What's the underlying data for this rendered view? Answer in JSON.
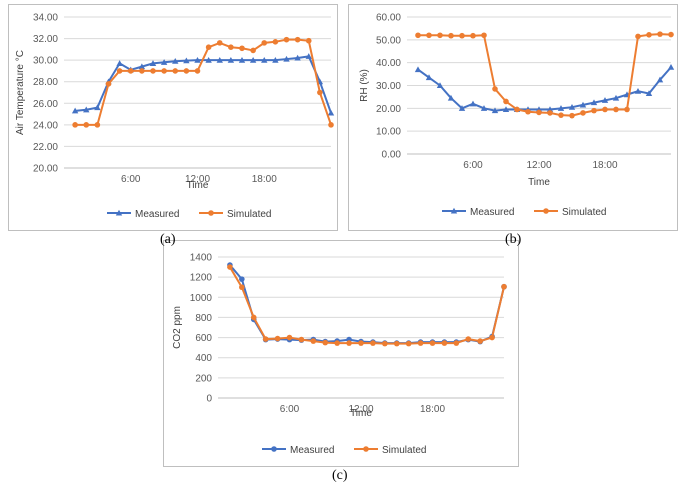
{
  "captions": {
    "a": "(a)",
    "b": "(b)",
    "c": "(c)"
  },
  "colors": {
    "measured": "#4472C4",
    "simulated": "#ED7D31",
    "grid": "#d9d9d9",
    "text": "#595959"
  },
  "chart_data": [
    {
      "id": "a",
      "type": "line",
      "title": "",
      "xlabel": "Time",
      "ylabel": "Air Temperature °C",
      "x": [
        1,
        2,
        3,
        4,
        5,
        6,
        7,
        8,
        9,
        10,
        11,
        12,
        13,
        14,
        15,
        16,
        17,
        18,
        19,
        20,
        21,
        22,
        23,
        24
      ],
      "xlim": [
        0,
        24
      ],
      "xticks": [
        {
          "x": 6,
          "label": "6:00"
        },
        {
          "x": 12,
          "label": "12:00"
        },
        {
          "x": 18,
          "label": "18:00"
        }
      ],
      "ylim": [
        20,
        34
      ],
      "yticks": [
        "20.00",
        "22.00",
        "24.00",
        "26.00",
        "28.00",
        "30.00",
        "32.00",
        "34.00"
      ],
      "grid": "horizontal",
      "legend": "bottom-center",
      "series": [
        {
          "name": "Measured",
          "marker": "triangle",
          "values": [
            25.3,
            25.4,
            25.6,
            28.0,
            29.7,
            29.1,
            29.4,
            29.7,
            29.8,
            29.9,
            29.95,
            30.0,
            30.0,
            30.0,
            30.0,
            30.0,
            30.0,
            30.0,
            30.0,
            30.1,
            30.2,
            30.35,
            28.0,
            25.1
          ]
        },
        {
          "name": "Simulated",
          "marker": "circle",
          "values": [
            24.0,
            24.0,
            24.0,
            27.8,
            29.0,
            29.0,
            29.0,
            29.0,
            29.0,
            29.0,
            29.0,
            29.0,
            31.2,
            31.6,
            31.2,
            31.1,
            30.9,
            31.6,
            31.7,
            31.9,
            31.9,
            31.8,
            27.0,
            24.0
          ]
        }
      ]
    },
    {
      "id": "b",
      "type": "line",
      "title": "",
      "xlabel": "Time",
      "ylabel": "RH (%)",
      "x": [
        1,
        2,
        3,
        4,
        5,
        6,
        7,
        8,
        9,
        10,
        11,
        12,
        13,
        14,
        15,
        16,
        17,
        18,
        19,
        20,
        21,
        22,
        23,
        24
      ],
      "xlim": [
        0,
        24
      ],
      "xticks": [
        {
          "x": 6,
          "label": "6:00"
        },
        {
          "x": 12,
          "label": "12:00"
        },
        {
          "x": 18,
          "label": "18:00"
        }
      ],
      "ylim": [
        0,
        60
      ],
      "yticks": [
        "0.00",
        "10.00",
        "20.00",
        "30.00",
        "40.00",
        "50.00",
        "60.00"
      ],
      "grid": "horizontal",
      "legend": "bottom-center",
      "series": [
        {
          "name": "Measured",
          "marker": "triangle",
          "values": [
            37.0,
            33.5,
            30.0,
            24.5,
            20.0,
            22.0,
            20.0,
            19.0,
            19.5,
            19.5,
            19.5,
            19.5,
            19.5,
            20.0,
            20.5,
            21.5,
            22.5,
            23.5,
            24.5,
            26.0,
            27.5,
            26.5,
            32.5,
            38.0
          ]
        },
        {
          "name": "Simulated",
          "marker": "circle",
          "values": [
            52.0,
            52.0,
            52.0,
            51.8,
            51.8,
            51.8,
            52.0,
            28.5,
            23.0,
            19.5,
            18.5,
            18.2,
            18.0,
            17.0,
            16.8,
            18.0,
            19.0,
            19.5,
            19.5,
            19.5,
            51.5,
            52.2,
            52.5,
            52.3
          ]
        }
      ]
    },
    {
      "id": "c",
      "type": "line",
      "title": "",
      "xlabel": "Time",
      "ylabel": "CO2 ppm",
      "x": [
        1,
        2,
        3,
        4,
        5,
        6,
        7,
        8,
        9,
        10,
        11,
        12,
        13,
        14,
        15,
        16,
        17,
        18,
        19,
        20,
        21,
        22,
        23,
        24
      ],
      "xlim": [
        0,
        24
      ],
      "xticks": [
        {
          "x": 6,
          "label": "6:00"
        },
        {
          "x": 12,
          "label": "12:00"
        },
        {
          "x": 18,
          "label": "18:00"
        }
      ],
      "ylim": [
        0,
        1400
      ],
      "yticks": [
        "0",
        "200",
        "400",
        "600",
        "800",
        "1000",
        "1200",
        "1400"
      ],
      "grid": "horizontal",
      "legend": "bottom-center",
      "series": [
        {
          "name": "Measured",
          "marker": "circle",
          "values": [
            1320,
            1180,
            780,
            580,
            585,
            580,
            575,
            580,
            560,
            565,
            580,
            560,
            555,
            545,
            545,
            545,
            555,
            555,
            555,
            555,
            580,
            560,
            610,
            1105
          ]
        },
        {
          "name": "Simulated",
          "marker": "circle",
          "values": [
            1300,
            1100,
            800,
            585,
            590,
            600,
            580,
            565,
            550,
            545,
            545,
            545,
            545,
            540,
            540,
            540,
            545,
            545,
            545,
            545,
            585,
            565,
            600,
            1105
          ]
        }
      ]
    }
  ]
}
